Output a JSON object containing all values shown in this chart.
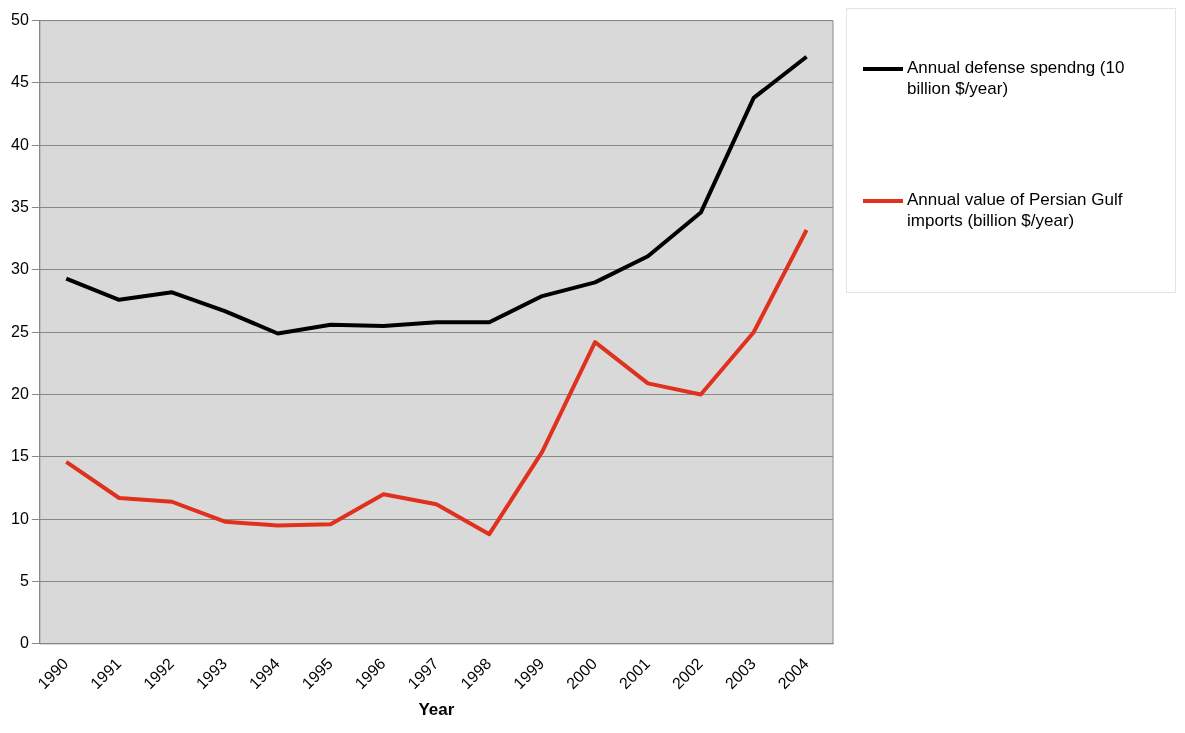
{
  "chart_data": {
    "type": "line",
    "xlabel": "Year",
    "categories": [
      "1990",
      "1991",
      "1992",
      "1993",
      "1994",
      "1995",
      "1996",
      "1997",
      "1998",
      "1999",
      "2000",
      "2001",
      "2002",
      "2003",
      "2004"
    ],
    "series": [
      {
        "name": "Annual defense spendng (10 billion $/year)",
        "color": "#000000",
        "values": [
          29.3,
          27.6,
          28.2,
          26.7,
          24.9,
          25.6,
          25.5,
          25.8,
          25.8,
          27.9,
          29.0,
          31.1,
          34.6,
          43.8,
          47.1
        ]
      },
      {
        "name": "Annual value of Persian Gulf imports (billion $/year)",
        "color": "#e0301e",
        "values": [
          14.6,
          11.7,
          11.4,
          9.8,
          9.5,
          9.6,
          12.0,
          11.2,
          8.8,
          15.4,
          24.2,
          20.9,
          20.0,
          25.0,
          33.2
        ]
      }
    ],
    "ylim": [
      0,
      50
    ],
    "yticks": [
      0,
      5,
      10,
      15,
      20,
      25,
      30,
      35,
      40,
      45,
      50
    ],
    "grid": "y",
    "legend": "right",
    "marker": "none",
    "line_style": "solid"
  }
}
